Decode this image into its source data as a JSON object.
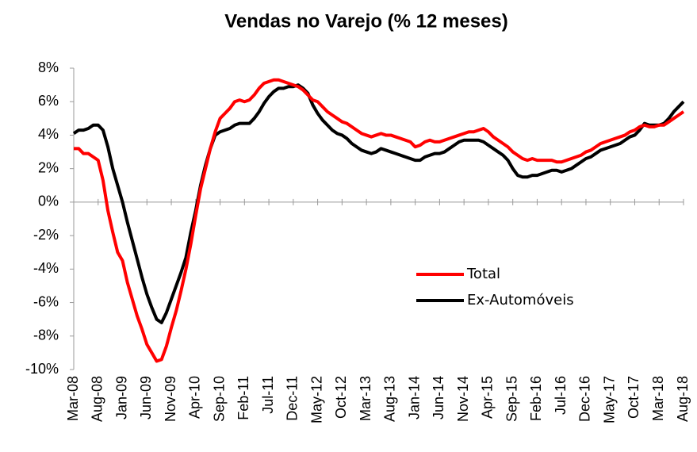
{
  "chart_data": {
    "type": "line",
    "title": "Vendas no Varejo (% 12 meses)",
    "categories": [
      "Mar-08",
      null,
      null,
      null,
      null,
      "Aug-08",
      null,
      null,
      null,
      null,
      "Jan-09",
      null,
      null,
      null,
      null,
      "Jun-09",
      null,
      null,
      null,
      null,
      "Nov-09",
      null,
      null,
      null,
      null,
      "Apr-10",
      null,
      null,
      null,
      null,
      "Sep-10",
      null,
      null,
      null,
      null,
      "Feb-11",
      null,
      null,
      null,
      null,
      "Jul-11",
      null,
      null,
      null,
      null,
      "Dec-11",
      null,
      null,
      null,
      null,
      "May-12",
      null,
      null,
      null,
      null,
      "Oct-12",
      null,
      null,
      null,
      null,
      "Mar-13",
      null,
      null,
      null,
      null,
      "Aug-13",
      null,
      null,
      null,
      null,
      "Jan-14",
      null,
      null,
      null,
      null,
      "Jun-14",
      null,
      null,
      null,
      null,
      "Nov-14",
      null,
      null,
      null,
      null,
      "Apr-15",
      null,
      null,
      null,
      null,
      "Sep-15",
      null,
      null,
      null,
      null,
      "Feb-16",
      null,
      null,
      null,
      null,
      "Jul-16",
      null,
      null,
      null,
      null,
      "Dec-16",
      null,
      null,
      null,
      null,
      "May-17",
      null,
      null,
      null,
      null,
      "Oct-17",
      null,
      null,
      null,
      null,
      "Mar-18",
      null,
      null,
      null,
      null,
      "Aug-18"
    ],
    "series": [
      {
        "name": "Total",
        "color": "#ff0000",
        "values": [
          3.2,
          3.2,
          2.9,
          2.9,
          2.7,
          2.5,
          1.3,
          -0.5,
          -1.8,
          -3.0,
          -3.5,
          -4.8,
          -5.8,
          -6.8,
          -7.6,
          -8.5,
          -9.0,
          -9.5,
          -9.4,
          -8.6,
          -7.5,
          -6.5,
          -5.3,
          -4.0,
          -2.5,
          -0.8,
          0.8,
          2.0,
          3.2,
          4.2,
          5.0,
          5.3,
          5.6,
          6.0,
          6.1,
          6.0,
          6.1,
          6.4,
          6.8,
          7.1,
          7.2,
          7.3,
          7.3,
          7.2,
          7.1,
          7.0,
          6.9,
          6.7,
          6.4,
          6.1,
          6.0,
          5.7,
          5.4,
          5.2,
          5.0,
          4.8,
          4.7,
          4.5,
          4.3,
          4.1,
          4.0,
          3.9,
          4.0,
          4.1,
          4.0,
          4.0,
          3.9,
          3.8,
          3.7,
          3.6,
          3.3,
          3.4,
          3.6,
          3.7,
          3.6,
          3.6,
          3.7,
          3.8,
          3.9,
          4.0,
          4.1,
          4.2,
          4.2,
          4.3,
          4.4,
          4.2,
          3.9,
          3.7,
          3.5,
          3.3,
          3.0,
          2.8,
          2.6,
          2.5,
          2.6,
          2.5,
          2.5,
          2.5,
          2.5,
          2.4,
          2.4,
          2.5,
          2.6,
          2.7,
          2.8,
          3.0,
          3.1,
          3.3,
          3.5,
          3.6,
          3.7,
          3.8,
          3.9,
          4.0,
          4.2,
          4.3,
          4.5,
          4.6,
          4.5,
          4.5,
          4.6,
          4.6,
          4.8,
          5.0,
          5.2,
          5.4
        ]
      },
      {
        "name": "Ex-Automóveis",
        "color": "#000000",
        "values": [
          4.1,
          4.3,
          4.3,
          4.4,
          4.6,
          4.6,
          4.3,
          3.3,
          2.0,
          1.0,
          0.0,
          -1.2,
          -2.3,
          -3.4,
          -4.5,
          -5.5,
          -6.3,
          -7.0,
          -7.2,
          -6.6,
          -5.8,
          -5.0,
          -4.2,
          -3.3,
          -1.8,
          -0.5,
          1.0,
          2.2,
          3.2,
          4.0,
          4.2,
          4.3,
          4.4,
          4.6,
          4.7,
          4.7,
          4.7,
          5.0,
          5.4,
          5.9,
          6.3,
          6.6,
          6.8,
          6.8,
          6.9,
          6.9,
          7.0,
          6.8,
          6.5,
          5.8,
          5.3,
          4.9,
          4.6,
          4.3,
          4.1,
          4.0,
          3.8,
          3.5,
          3.3,
          3.1,
          3.0,
          2.9,
          3.0,
          3.2,
          3.1,
          3.0,
          2.9,
          2.8,
          2.7,
          2.6,
          2.5,
          2.5,
          2.7,
          2.8,
          2.9,
          2.9,
          3.0,
          3.2,
          3.4,
          3.6,
          3.7,
          3.7,
          3.7,
          3.7,
          3.6,
          3.4,
          3.2,
          3.0,
          2.8,
          2.5,
          2.0,
          1.6,
          1.5,
          1.5,
          1.6,
          1.6,
          1.7,
          1.8,
          1.9,
          1.9,
          1.8,
          1.9,
          2.0,
          2.2,
          2.4,
          2.6,
          2.7,
          2.9,
          3.1,
          3.2,
          3.3,
          3.4,
          3.5,
          3.7,
          3.9,
          4.0,
          4.3,
          4.7,
          4.6,
          4.6,
          4.6,
          4.7,
          5.0,
          5.4,
          5.7,
          6.0
        ]
      }
    ],
    "ylim": [
      -10,
      8
    ],
    "yticks": [
      {
        "value": -10,
        "label": "-10%"
      },
      {
        "value": -8,
        "label": "-8%"
      },
      {
        "value": -6,
        "label": "-6%"
      },
      {
        "value": -4,
        "label": "-4%"
      },
      {
        "value": -2,
        "label": "-2%"
      },
      {
        "value": 0,
        "label": "0%"
      },
      {
        "value": 2,
        "label": "2%"
      },
      {
        "value": 4,
        "label": "4%"
      },
      {
        "value": 6,
        "label": "6%"
      },
      {
        "value": 8,
        "label": "8%"
      }
    ],
    "grid": false,
    "legend": "lower right"
  }
}
